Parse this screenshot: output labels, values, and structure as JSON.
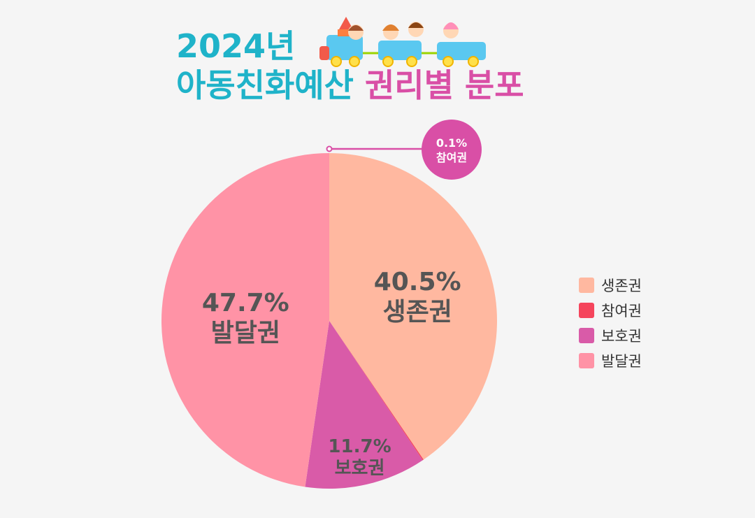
{
  "title": {
    "line1": "2024년",
    "line2_main": "아동친화예산 ",
    "line2_accent": "권리별 분포"
  },
  "chart_data": {
    "type": "pie",
    "title": "2024년 아동친화예산 권리별 분포",
    "categories": [
      "생존권",
      "참여권",
      "보호권",
      "발달권"
    ],
    "values": [
      40.5,
      0.1,
      11.7,
      47.7
    ],
    "value_labels": [
      "40.5%",
      "0.1%",
      "11.7%",
      "47.7%"
    ],
    "colors": [
      "#ffb8a0",
      "#f5455c",
      "#d95ba8",
      "#ff93a6"
    ],
    "start": "12 o'clock, clockwise",
    "legend_position": "right"
  },
  "colors": {
    "background": "#f5f5f5",
    "title": "#1fb3c9",
    "title_accent": "#d94fa6",
    "label_text": "#555555",
    "callout": "#d94fa6"
  },
  "illustration": "kids-train-icon"
}
